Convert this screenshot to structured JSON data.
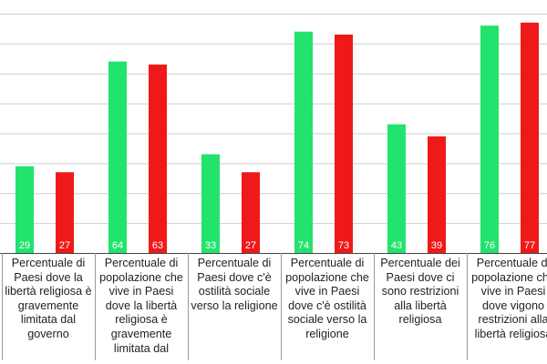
{
  "chart_data": {
    "type": "bar",
    "title": "",
    "xlabel": "",
    "ylabel": "",
    "ylim": [
      0,
      80
    ],
    "grid": true,
    "legend": "none",
    "categories": [
      "Percentuale di Paesi dove la libertà religiosa è gravemente limitata dal governo",
      "Percentuale di popolazione che vive in Paesi dove la libertà religiosa è gravemente limitata dal governo",
      "Percentuale di Paesi dove c'è ostilità sociale verso la religione",
      "Percentuale di popolazione che vive in Paesi dove c'è ostilità sociale verso la religione",
      "Percentuale dei Paesi dove ci sono restrizioni alla libertà religiosa",
      "Percentuale di popolazione che vive in Paesi dove vigono restrizioni alla libertà religiosa"
    ],
    "series": [
      {
        "color": "#22e36d",
        "values": [
          29,
          64,
          33,
          74,
          43,
          76
        ]
      },
      {
        "color": "#f01919",
        "values": [
          27,
          63,
          27,
          73,
          39,
          77
        ]
      }
    ]
  }
}
